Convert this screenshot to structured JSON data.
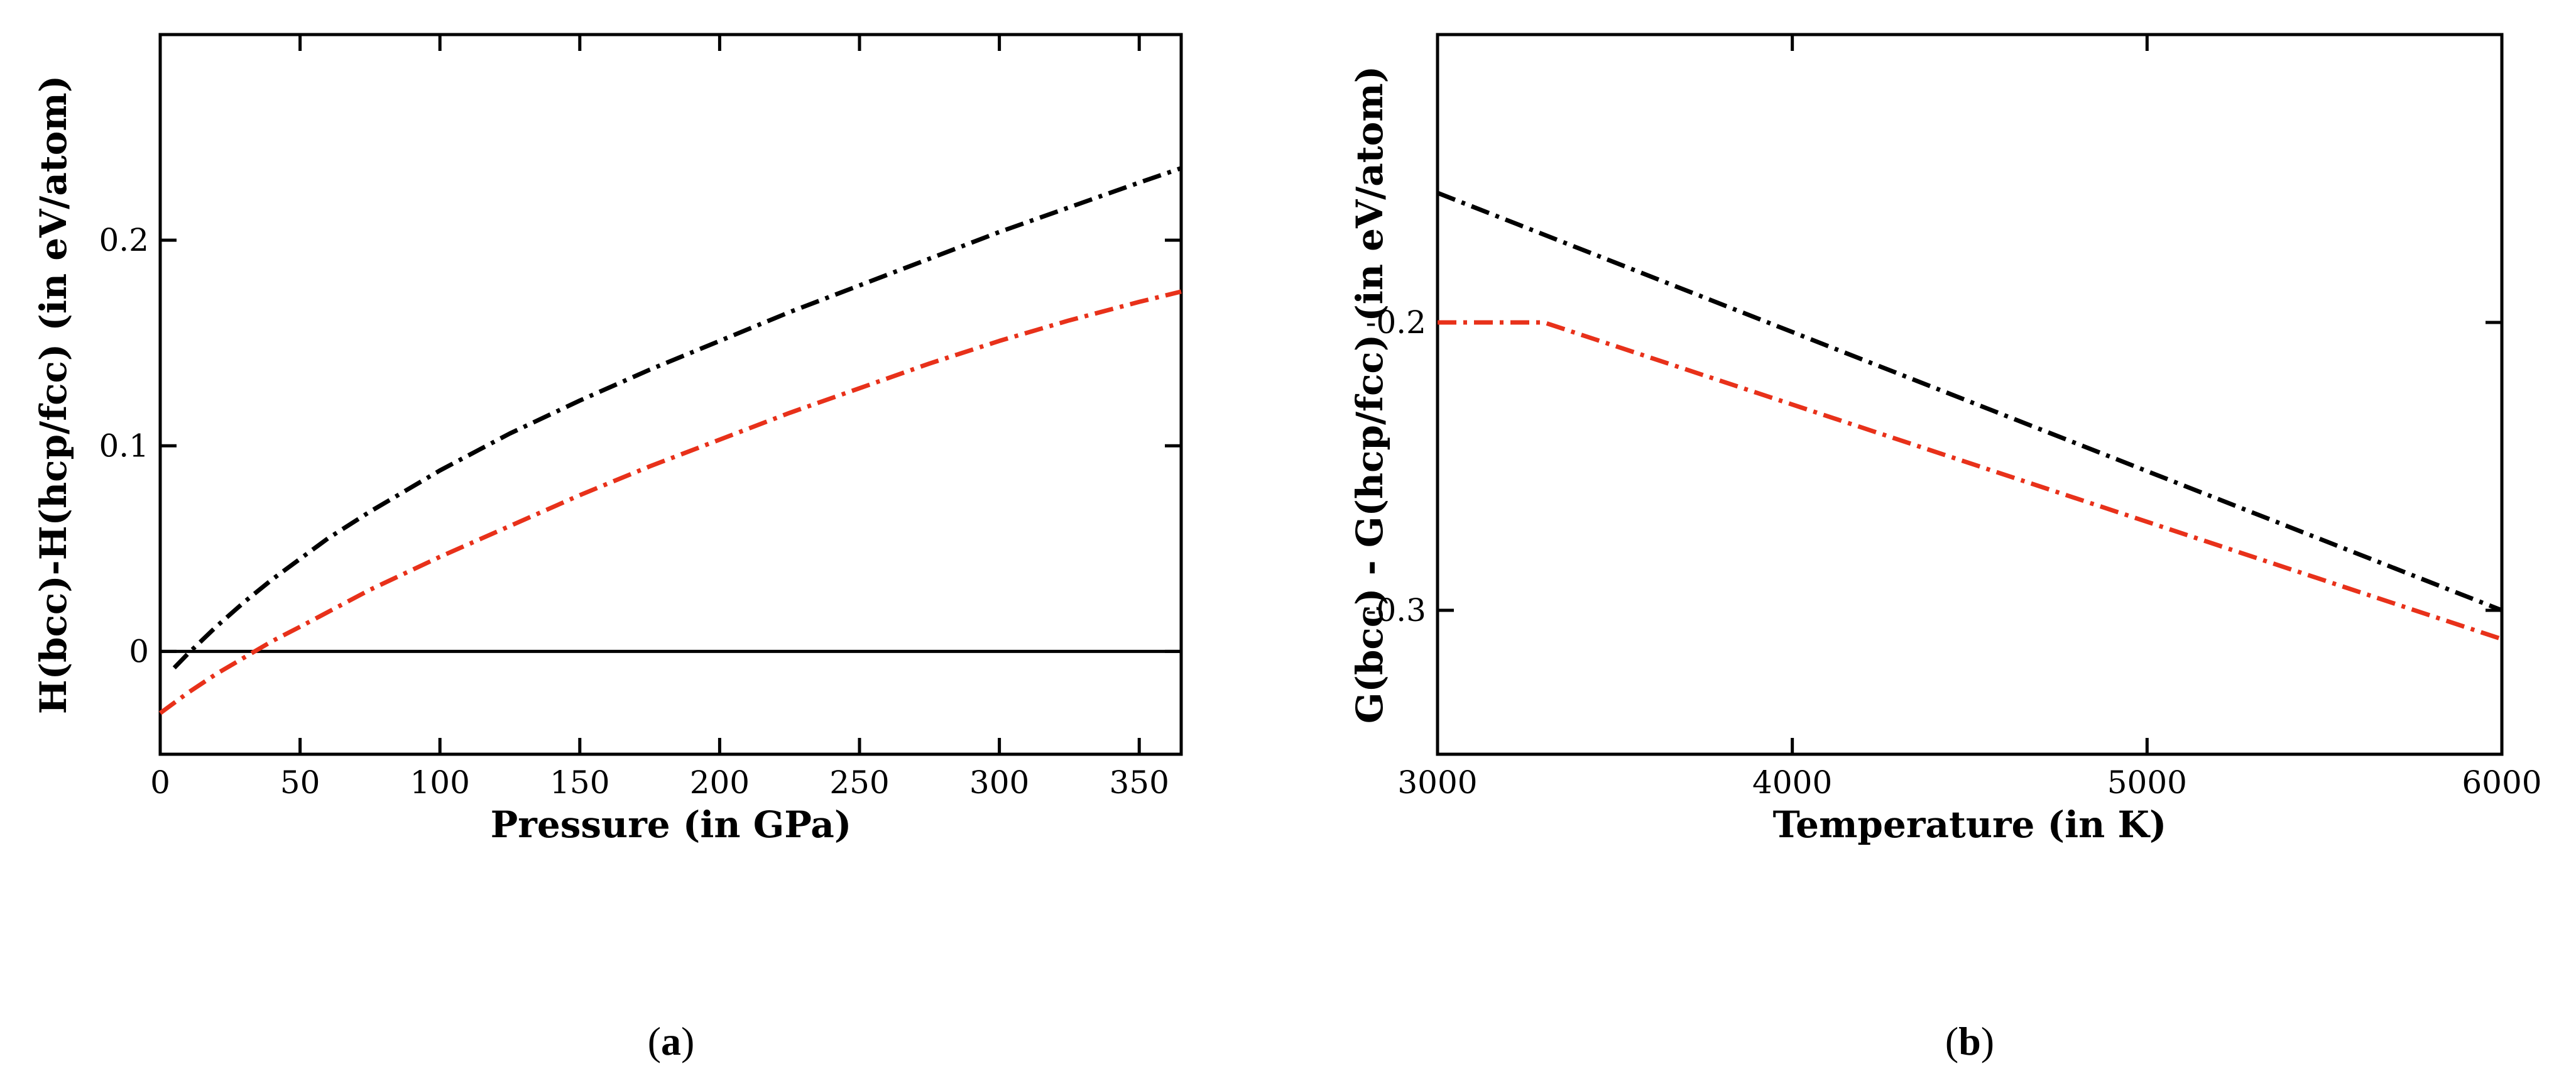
{
  "chart_data": [
    {
      "type": "line",
      "panel": "a",
      "caption_open": "(",
      "caption_letter": "a",
      "caption_close": ")",
      "xlabel": "Pressure (in GPa)",
      "ylabel": "H(bcc)-H(hcp/fcc) (in eV/atom)",
      "xlim": [
        0,
        365
      ],
      "ylim": [
        -0.05,
        0.3
      ],
      "xticks": [
        0,
        50,
        100,
        150,
        200,
        250,
        300,
        350
      ],
      "xtick_labels": [
        "0",
        "50",
        "100",
        "150",
        "200",
        "250",
        "300",
        "350"
      ],
      "yticks": [
        0,
        0.1,
        0.2
      ],
      "ytick_labels": [
        "0",
        "0.1",
        "0.2"
      ],
      "grid": false,
      "reference_line": {
        "y": 0,
        "color": "#000000"
      },
      "series": [
        {
          "name": "black",
          "color": "#000000",
          "style": "dash-dot",
          "x": [
            5,
            10,
            20,
            30,
            40,
            50,
            60,
            75,
            100,
            125,
            150,
            175,
            200,
            225,
            250,
            275,
            300,
            325,
            350,
            365
          ],
          "y": [
            -0.008,
            -0.001,
            0.012,
            0.024,
            0.035,
            0.045,
            0.055,
            0.068,
            0.088,
            0.106,
            0.122,
            0.137,
            0.151,
            0.165,
            0.178,
            0.191,
            0.204,
            0.216,
            0.228,
            0.235
          ]
        },
        {
          "name": "red",
          "color": "#e8311a",
          "style": "dash-dot",
          "x": [
            0,
            10,
            20,
            30,
            40,
            50,
            75,
            100,
            125,
            150,
            175,
            200,
            225,
            250,
            275,
            300,
            325,
            350,
            365
          ],
          "y": [
            -0.03,
            -0.02,
            -0.011,
            -0.003,
            0.005,
            0.012,
            0.03,
            0.046,
            0.061,
            0.076,
            0.09,
            0.103,
            0.116,
            0.128,
            0.14,
            0.151,
            0.161,
            0.17,
            0.175
          ]
        }
      ]
    },
    {
      "type": "line",
      "panel": "b",
      "caption_open": "(",
      "caption_letter": "b",
      "caption_close": ")",
      "xlabel": "Temperature (in K)",
      "ylabel": "G(bcc) - G(hcp/fcc) (in eV/atom)",
      "xlim": [
        3000,
        6000
      ],
      "ylim": [
        -0.35,
        -0.1
      ],
      "xticks": [
        3000,
        4000,
        5000,
        6000
      ],
      "xtick_labels": [
        "3000",
        "4000",
        "5000",
        "6000"
      ],
      "yticks": [
        -0.3,
        -0.2
      ],
      "ytick_labels": [
        "-0.3",
        "-0.2"
      ],
      "grid": false,
      "series": [
        {
          "name": "black",
          "color": "#000000",
          "style": "dash-dot",
          "x": [
            3000,
            6000
          ],
          "y": [
            -0.155,
            -0.3
          ]
        },
        {
          "name": "red",
          "color": "#e8311a",
          "style": "dash-dot",
          "x": [
            3000,
            3300,
            6000
          ],
          "y": [
            -0.2,
            -0.2,
            -0.31
          ]
        }
      ]
    }
  ]
}
